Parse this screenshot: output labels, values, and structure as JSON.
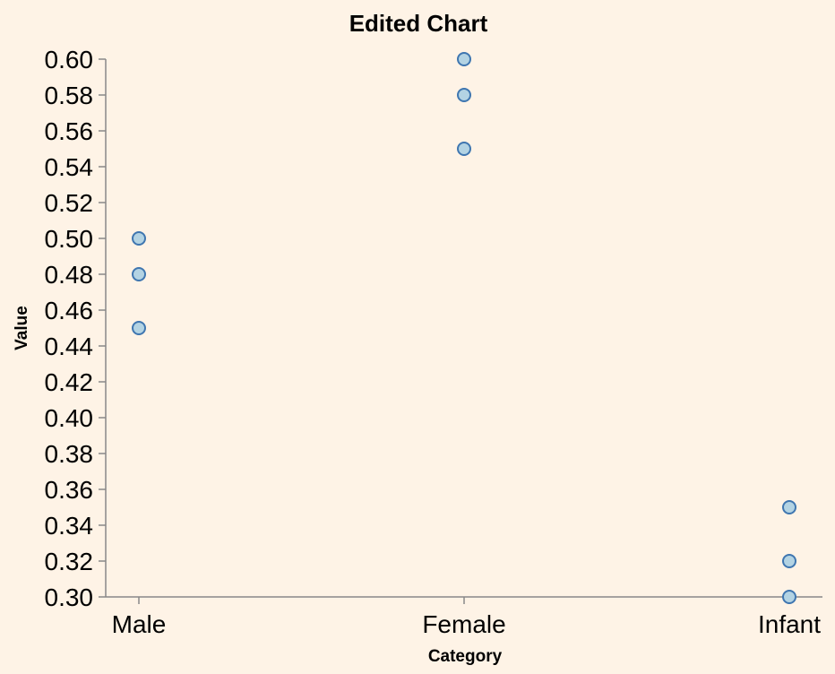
{
  "chart_data": {
    "type": "scatter",
    "title": "Edited Chart",
    "xlabel": "Category",
    "ylabel": "Value",
    "categories": [
      "Male",
      "Female",
      "Infant"
    ],
    "ylim": [
      0.3,
      0.6
    ],
    "yticks": [
      "0.30",
      "0.32",
      "0.34",
      "0.36",
      "0.38",
      "0.40",
      "0.42",
      "0.44",
      "0.46",
      "0.48",
      "0.50",
      "0.52",
      "0.54",
      "0.56",
      "0.58",
      "0.60"
    ],
    "points": [
      {
        "category": "Male",
        "value": 0.5
      },
      {
        "category": "Male",
        "value": 0.48
      },
      {
        "category": "Male",
        "value": 0.45
      },
      {
        "category": "Female",
        "value": 0.6
      },
      {
        "category": "Female",
        "value": 0.58
      },
      {
        "category": "Female",
        "value": 0.55
      },
      {
        "category": "Infant",
        "value": 0.35
      },
      {
        "category": "Infant",
        "value": 0.32
      },
      {
        "category": "Infant",
        "value": 0.3
      }
    ],
    "grid": false,
    "colors": {
      "background": "#fef3e6",
      "point_fill": "#b3d3e3",
      "point_stroke": "#3f76b0",
      "axis": "#888888"
    }
  }
}
